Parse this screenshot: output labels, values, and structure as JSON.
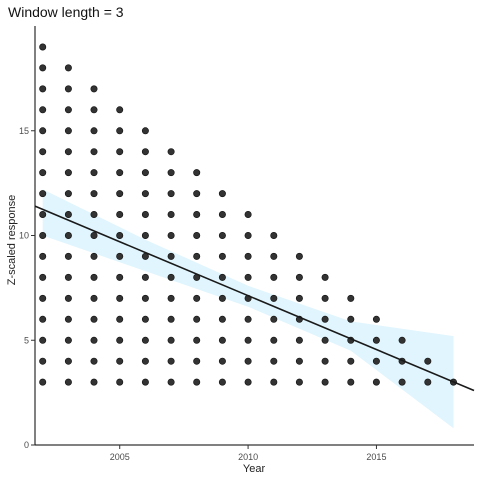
{
  "chart_data": {
    "type": "scatter",
    "title": "Window length = 3",
    "xlabel": "Year",
    "ylabel": "Z-scaled response",
    "xlim": [
      2001.7,
      2018.8
    ],
    "ylim": [
      0,
      20
    ],
    "x_ticks": [
      2005,
      2010,
      2015
    ],
    "y_ticks": [
      0,
      5,
      10,
      15
    ],
    "grid": false,
    "point_color": "#333333",
    "line_color": "#1a1a1a",
    "band_color": "#e0f5fd",
    "points_by_year": [
      {
        "year": 2002,
        "y_min": 3,
        "y_max": 19
      },
      {
        "year": 2003,
        "y_min": 3,
        "y_max": 18
      },
      {
        "year": 2004,
        "y_min": 3,
        "y_max": 17
      },
      {
        "year": 2005,
        "y_min": 3,
        "y_max": 16
      },
      {
        "year": 2006,
        "y_min": 3,
        "y_max": 15
      },
      {
        "year": 2007,
        "y_min": 3,
        "y_max": 14
      },
      {
        "year": 2008,
        "y_min": 3,
        "y_max": 13
      },
      {
        "year": 2009,
        "y_min": 3,
        "y_max": 12
      },
      {
        "year": 2010,
        "y_min": 3,
        "y_max": 11
      },
      {
        "year": 2011,
        "y_min": 3,
        "y_max": 10
      },
      {
        "year": 2012,
        "y_min": 3,
        "y_max": 9
      },
      {
        "year": 2013,
        "y_min": 3,
        "y_max": 8
      },
      {
        "year": 2014,
        "y_min": 3,
        "y_max": 7
      },
      {
        "year": 2015,
        "y_min": 3,
        "y_max": 6
      },
      {
        "year": 2016,
        "y_min": 3,
        "y_max": 5
      },
      {
        "year": 2017,
        "y_min": 3,
        "y_max": 4
      },
      {
        "year": 2018,
        "y_min": 3,
        "y_max": 3
      }
    ],
    "trend_line": {
      "x": [
        2001.7,
        2018.8
      ],
      "y": [
        11.4,
        2.6
      ]
    },
    "confidence_band": {
      "x": [
        2002,
        2006,
        2010,
        2014,
        2018
      ],
      "lower": [
        10.0,
        8.3,
        6.6,
        4.5,
        0.8
      ],
      "upper": [
        12.2,
        9.8,
        7.6,
        5.9,
        5.2
      ]
    }
  }
}
